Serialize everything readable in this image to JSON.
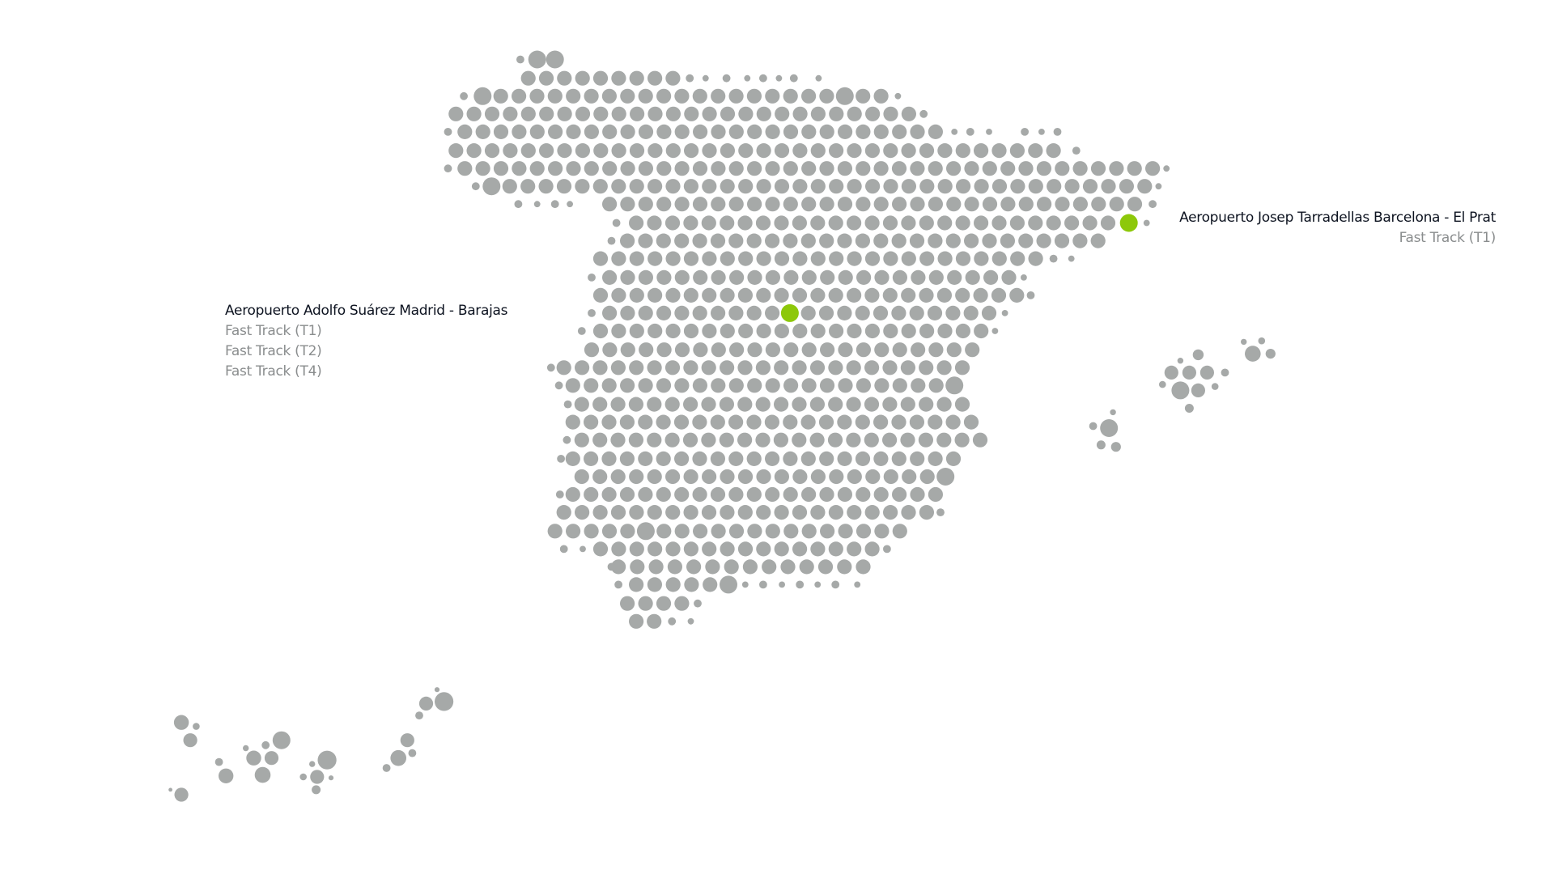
{
  "colors": {
    "dot": "#a6a9a8",
    "airport_marker": "#8dc80a",
    "title_text": "#0d1320",
    "service_text": "#8a8d8e"
  },
  "airports": [
    {
      "name": "Aeropuerto Adolfo Suárez Madrid - Barajas",
      "services": [
        "Fast Track (T1)",
        "Fast Track (T2)",
        "Fast Track (T4)"
      ]
    },
    {
      "name": "Aeropuerto Josep Tarradellas Barcelona - El Prat",
      "services": [
        "Fast Track (T1)"
      ]
    }
  ]
}
